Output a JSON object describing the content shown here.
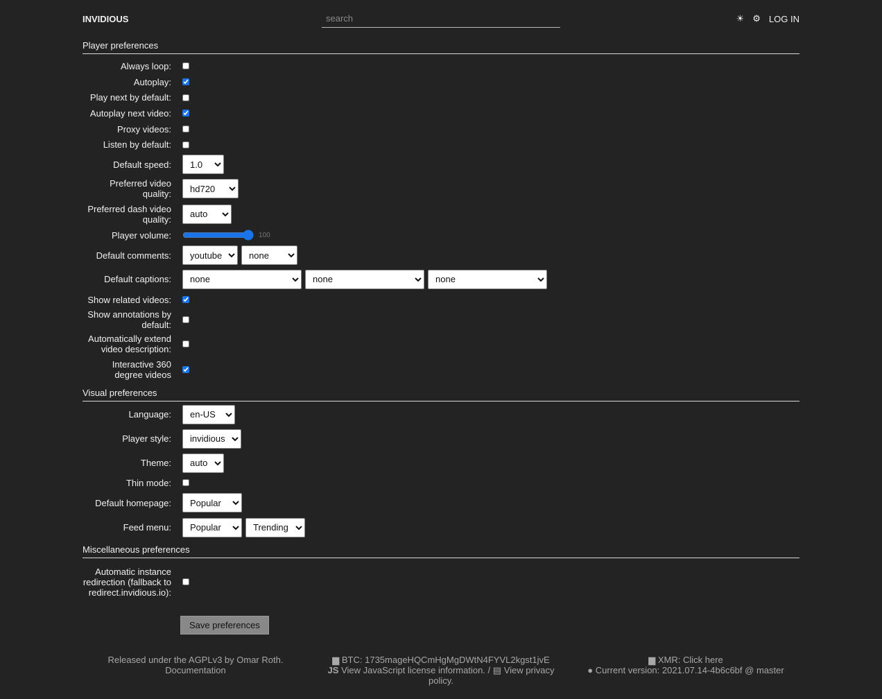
{
  "header": {
    "brand": "INVIDIOUS",
    "search_placeholder": "search",
    "theme_icon": "sun-icon",
    "settings_icon": "gear-icon",
    "login": "LOG IN"
  },
  "player": {
    "title": "Player preferences",
    "always_loop": {
      "label": "Always loop:",
      "checked": false
    },
    "autoplay": {
      "label": "Autoplay:",
      "checked": true
    },
    "play_next": {
      "label": "Play next by default:",
      "checked": false
    },
    "autoplay_next": {
      "label": "Autoplay next video:",
      "checked": true
    },
    "proxy": {
      "label": "Proxy videos:",
      "checked": false
    },
    "listen": {
      "label": "Listen by default:",
      "checked": false
    },
    "speed": {
      "label": "Default speed:",
      "value": "1.0"
    },
    "quality": {
      "label": "Preferred video quality:",
      "value": "hd720"
    },
    "dash": {
      "label": "Preferred dash video quality:",
      "value": "auto"
    },
    "volume": {
      "label": "Player volume:",
      "value": "100"
    },
    "comments": {
      "label": "Default comments:",
      "values": [
        "youtube",
        "none"
      ]
    },
    "captions": {
      "label": "Default captions:",
      "values": [
        "none",
        "none",
        "none"
      ]
    },
    "related": {
      "label": "Show related videos:",
      "checked": true
    },
    "annotations": {
      "label": "Show annotations by default:",
      "checked": false
    },
    "extend": {
      "label": "Automatically extend video description:",
      "checked": false
    },
    "vr": {
      "label": "Interactive 360 degree videos",
      "checked": true
    }
  },
  "visual": {
    "title": "Visual preferences",
    "language": {
      "label": "Language:",
      "value": "en-US"
    },
    "style": {
      "label": "Player style:",
      "value": "invidious"
    },
    "theme": {
      "label": "Theme:",
      "value": "auto"
    },
    "thin": {
      "label": "Thin mode:",
      "checked": false
    },
    "homepage": {
      "label": "Default homepage:",
      "value": "Popular"
    },
    "feed": {
      "label": "Feed menu:",
      "values": [
        "Popular",
        "Trending"
      ]
    }
  },
  "misc": {
    "title": "Miscellaneous preferences",
    "redirect": {
      "label": "Automatic instance redirection (fallback to redirect.invidious.io):",
      "checked": false
    }
  },
  "save_label": "Save preferences",
  "footer": {
    "released": "Released under the AGPLv3 by Omar Roth.",
    "documentation": "Documentation",
    "btc": "BTC: 1735mageHQCmHgMgDWtN4FYVL2kgst1jvE",
    "js_license": "View JavaScript license information.",
    "separator": "/",
    "privacy": "View privacy policy.",
    "xmr": "XMR: Click here",
    "version": "Current version: 2021.07.14-4b6c6bf @ master"
  }
}
